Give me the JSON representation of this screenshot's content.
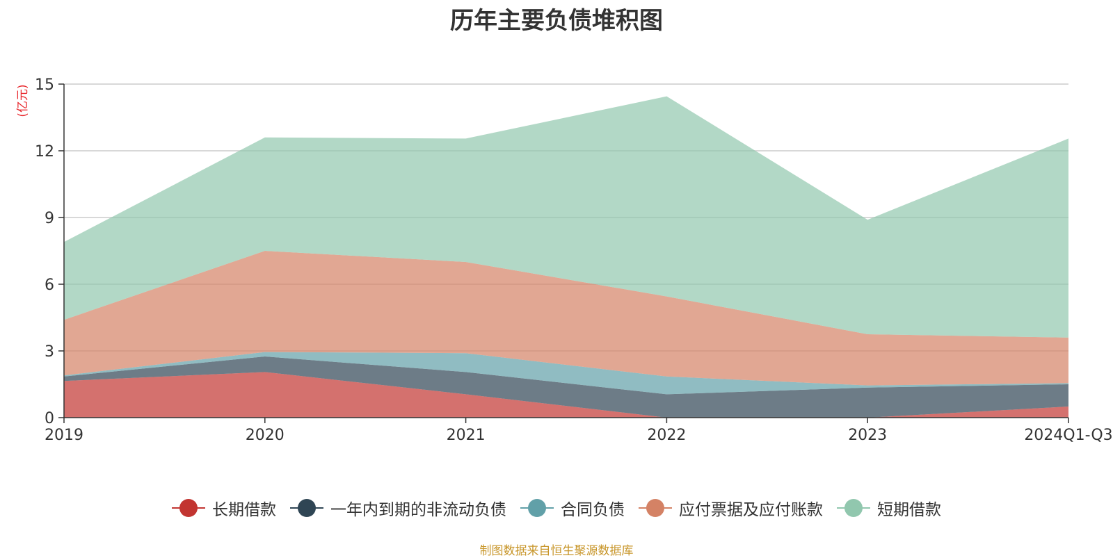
{
  "chart_data": {
    "type": "area",
    "stacked": true,
    "title": "历年主要负债堆积图",
    "ylabel": "(亿元)",
    "xlabel": "",
    "categories": [
      "2019",
      "2020",
      "2021",
      "2022",
      "2023",
      "2024Q1-Q3"
    ],
    "ylim": [
      0,
      15
    ],
    "yticks": [
      "0",
      "3",
      "6",
      "9",
      "12",
      "15"
    ],
    "grid": true,
    "legend_position": "bottom",
    "series": [
      {
        "name": "长期借款",
        "color": "#c23531",
        "values": [
          1.65,
          2.05,
          1.05,
          0.0,
          0.0,
          0.5
        ]
      },
      {
        "name": "一年内到期的非流动负债",
        "color": "#2f4554",
        "values": [
          0.2,
          0.7,
          1.0,
          1.05,
          1.35,
          1.0
        ]
      },
      {
        "name": "合同负债",
        "color": "#61a0a8",
        "values": [
          0.05,
          0.2,
          0.85,
          0.8,
          0.1,
          0.05
        ]
      },
      {
        "name": "应付票据及应付账款",
        "color": "#d48265",
        "values": [
          2.5,
          4.55,
          4.1,
          3.6,
          2.3,
          2.05
        ]
      },
      {
        "name": "短期借款",
        "color": "#91c7ae",
        "values": [
          3.5,
          5.1,
          5.55,
          9.0,
          5.15,
          8.95
        ]
      }
    ]
  },
  "footer": {
    "source": "制图数据来自恒生聚源数据库"
  }
}
